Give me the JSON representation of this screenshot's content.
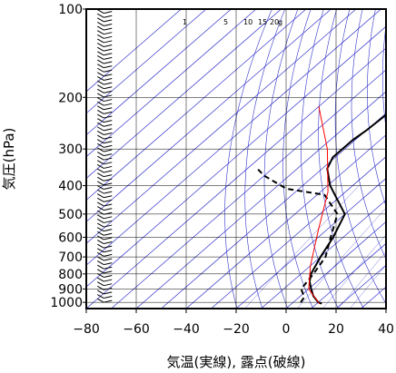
{
  "chart_data": {
    "type": "line",
    "subtype": "skew-T log-P thermodynamic diagram (emagram) with wind barbs",
    "xlabel": "気温(実線), 露点(破線)",
    "ylabel": "気圧(hPa)",
    "x_ticks": [
      -80,
      -60,
      -40,
      -20,
      0,
      20,
      40
    ],
    "y_ticks": [
      100,
      200,
      300,
      400,
      500,
      600,
      700,
      800,
      900,
      1000
    ],
    "xlim": [
      -80,
      40
    ],
    "ylim": [
      1050,
      100
    ],
    "y_scale": "log",
    "grid": true,
    "mixing_ratio_labels": [
      "1",
      "5",
      "10",
      "15",
      "20",
      "g"
    ],
    "colors": {
      "temperature": "#000000",
      "dewpoint": "#000000",
      "parcel": "#ff0000",
      "guide_lines": "#3333cc",
      "grid": "#000000"
    },
    "series": [
      {
        "role": "temperature",
        "style": "solid",
        "points": [
          {
            "t": 12,
            "p": 1010
          },
          {
            "t": 10,
            "p": 1000
          },
          {
            "t": 5,
            "p": 950
          },
          {
            "t": 1,
            "p": 900
          },
          {
            "t": -3,
            "p": 850
          },
          {
            "t": -6,
            "p": 800
          },
          {
            "t": -10,
            "p": 700
          },
          {
            "t": -14,
            "p": 600
          },
          {
            "t": -20,
            "p": 500
          },
          {
            "t": -29,
            "p": 450
          },
          {
            "t": -39,
            "p": 400
          },
          {
            "t": -48,
            "p": 350
          },
          {
            "t": -51,
            "p": 320
          },
          {
            "t": -51,
            "p": 280
          },
          {
            "t": -50,
            "p": 260
          },
          {
            "t": -49,
            "p": 220
          },
          {
            "t": -51,
            "p": 190
          },
          {
            "t": -50,
            "p": 170
          },
          {
            "t": -52,
            "p": 150
          },
          {
            "t": -51,
            "p": 130
          },
          {
            "t": -53,
            "p": 115
          },
          {
            "t": -52,
            "p": 105
          },
          {
            "t": -53,
            "p": 100
          }
        ]
      },
      {
        "role": "dewpoint",
        "style": "dashed",
        "points": [
          {
            "t": 3,
            "p": 1000
          },
          {
            "t": 2,
            "p": 960
          },
          {
            "t": -3,
            "p": 900
          },
          {
            "t": -4,
            "p": 850
          },
          {
            "t": -5,
            "p": 800
          },
          {
            "t": -8,
            "p": 700
          },
          {
            "t": -15,
            "p": 600
          },
          {
            "t": -23,
            "p": 500
          },
          {
            "t": -37,
            "p": 430
          },
          {
            "t": -55,
            "p": 410
          },
          {
            "t": -70,
            "p": 370
          },
          {
            "t": -76,
            "p": 350
          }
        ]
      },
      {
        "role": "parcel",
        "style": "solid",
        "points": [
          {
            "t": 11,
            "p": 1010
          },
          {
            "t": 0,
            "p": 900
          },
          {
            "t": -10,
            "p": 750
          },
          {
            "t": -23,
            "p": 570
          },
          {
            "t": -37,
            "p": 420
          },
          {
            "t": -57,
            "p": 300
          },
          {
            "t": -80,
            "p": 215
          }
        ]
      }
    ],
    "wind_barb_column": {
      "x": -73,
      "p_range": [
        1000,
        100
      ]
    }
  }
}
